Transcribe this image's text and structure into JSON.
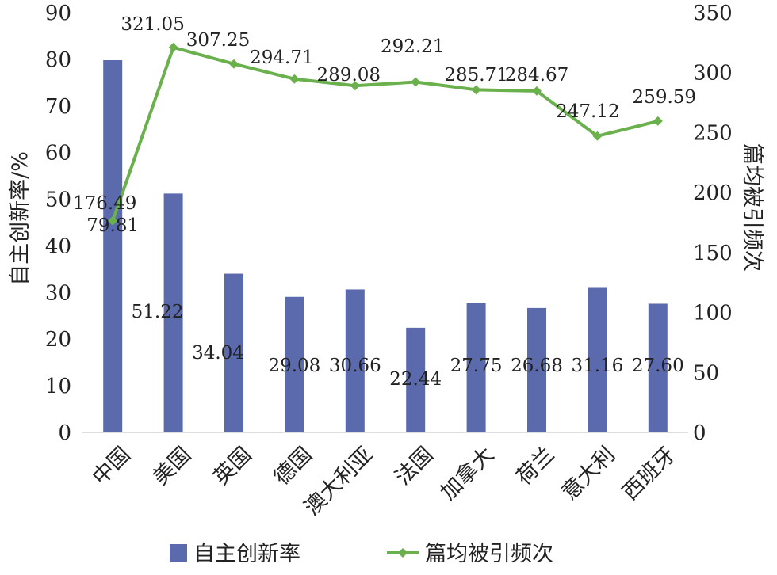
{
  "chart_data": {
    "type": "bar+line",
    "categories": [
      "中国",
      "美国",
      "英国",
      "德国",
      "澳大利亚",
      "法国",
      "加拿大",
      "荷兰",
      "意大利",
      "西班牙"
    ],
    "series": [
      {
        "name": "自主创新率",
        "type": "bar",
        "axis": "left",
        "color": "#5B6AAD",
        "values": [
          79.81,
          51.22,
          34.04,
          29.08,
          30.66,
          22.44,
          27.75,
          26.68,
          31.16,
          27.6
        ],
        "labels": [
          "79.81",
          "51.22",
          "34.04",
          "29.08",
          "30.66",
          "22.44",
          "27.75",
          "26.68",
          "31.16",
          "27.60"
        ]
      },
      {
        "name": "篇均被引频次",
        "type": "line",
        "axis": "right",
        "color": "#6AB04C",
        "values": [
          176.49,
          321.05,
          307.25,
          294.71,
          289.08,
          292.21,
          285.71,
          284.67,
          247.12,
          259.59
        ],
        "labels": [
          "176.49",
          "321.05",
          "307.25",
          "294.71",
          "289.08",
          "292.21",
          "285.71",
          "284.67",
          "247.12",
          "259.59"
        ]
      }
    ],
    "ylabel_left": "自主创新率/%",
    "ylabel_right": "篇均被引频次",
    "ylim_left": [
      0,
      90
    ],
    "yticks_left": [
      "0",
      "10",
      "20",
      "30",
      "40",
      "50",
      "60",
      "70",
      "80",
      "90"
    ],
    "ylim_right": [
      0,
      350
    ],
    "yticks_right": [
      "0",
      "50",
      "100",
      "150",
      "200",
      "250",
      "300",
      "350"
    ],
    "grid": false,
    "legend_position": "bottom"
  }
}
